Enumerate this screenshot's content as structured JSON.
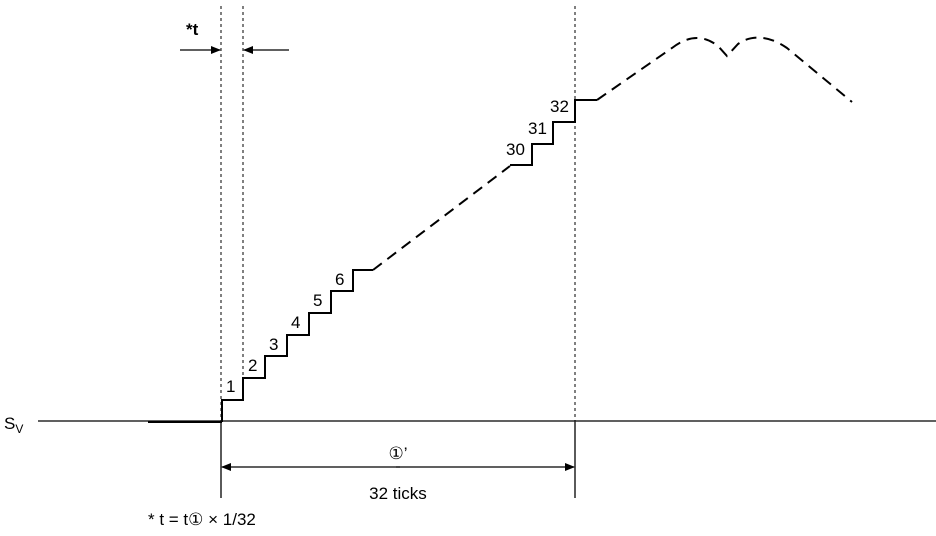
{
  "axis": {
    "label": "S",
    "subscript": "V"
  },
  "step_labels": [
    "1",
    "2",
    "3",
    "4",
    "5",
    "6",
    "30",
    "31",
    "32"
  ],
  "t_marker": {
    "label": "*t"
  },
  "interval": {
    "symbol": "①’",
    "ticks_label": "32 ticks"
  },
  "footnote": "* t = t① × 1/32"
}
